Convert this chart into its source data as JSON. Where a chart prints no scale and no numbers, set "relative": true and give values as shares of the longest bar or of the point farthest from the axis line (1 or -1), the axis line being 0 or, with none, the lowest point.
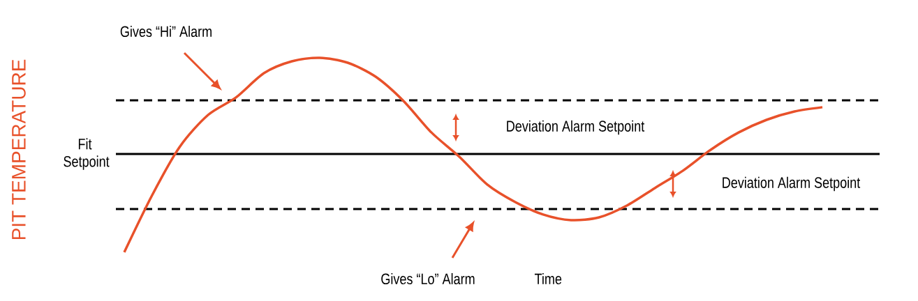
{
  "chart_data": {
    "type": "line",
    "relative": true,
    "ylabel": "PIT TEMPERATURE",
    "xlabel": "Time",
    "categories": [
      null,
      null,
      null,
      null,
      null,
      null,
      null,
      null,
      null,
      null,
      null,
      null,
      null,
      null,
      null,
      null,
      null,
      null,
      null,
      null,
      null,
      null,
      null,
      null,
      null,
      null
    ],
    "series": [
      {
        "color": "#e8512a",
        "values": [
          0,
          0.294,
          0.545,
          0.706,
          0.796,
          0.921,
          0.982,
          1,
          0.975,
          0.903,
          0.778,
          0.616,
          0.491,
          0.348,
          0.258,
          0.194,
          0.165,
          0.179,
          0.24,
          0.33,
          0.419,
          0.527,
          0.616,
          0.681,
          0.724,
          0.746
        ]
      }
    ],
    "marker": "none",
    "line_style": "solid",
    "ref_lines": [
      {
        "axis": "y",
        "value": 0.781,
        "line_style": "dashed",
        "color": "#000000"
      },
      {
        "axis": "y",
        "value": 0.505,
        "label": "Fit Setpoint",
        "line_style": "solid",
        "color": "#000000"
      },
      {
        "axis": "y",
        "value": 0.222,
        "line_style": "dashed",
        "color": "#000000"
      }
    ],
    "annotations": [
      "Gives “Hi” Alarm",
      "Gives “Lo” Alarm",
      "Deviation Alarm Setpoint",
      "Deviation Alarm Setpoint"
    ]
  }
}
